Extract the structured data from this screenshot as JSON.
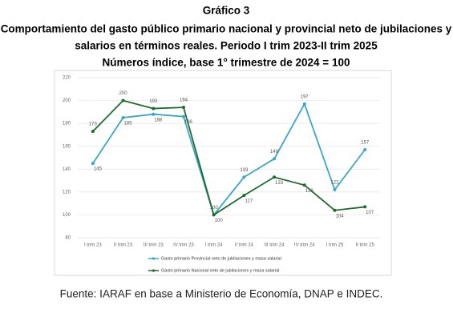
{
  "chart_data": {
    "type": "line",
    "title": "Gráfico 3",
    "subtitle": [
      "Comportamiento del gasto público primario nacional y provincial neto de jubilaciones y",
      "salarios en términos reales. Periodo I trim 2023-II trim 2025",
      "Números índice, base 1° trimestre de 2024 = 100"
    ],
    "categories": [
      "I trim 23",
      "II trim 23",
      "III trim 23",
      "IV trim 23",
      "I trim 24",
      "II trim 24",
      "III trim 24",
      "IV trim 24",
      "I trim 25",
      "II trim 25"
    ],
    "series": [
      {
        "name": "Gasto primario Provincial neto de jubilaciones y masa salarial",
        "color": "#3aa6c9",
        "values": [
          145,
          185,
          188,
          186,
          100,
          133,
          149,
          197,
          122,
          157
        ]
      },
      {
        "name": "Gasto primario Nacional neto de jubilaciones y masa salarial",
        "color": "#1e6b2e",
        "values": [
          173,
          200,
          193,
          194,
          100,
          117,
          133,
          126,
          104,
          107
        ]
      }
    ],
    "ylim": [
      80,
      220
    ],
    "yticks": [
      80,
      100,
      120,
      140,
      160,
      180,
      200,
      220
    ],
    "grid": true,
    "source": "Fuente: IARAF en base a Ministerio de Economía, DNAP e INDEC."
  }
}
